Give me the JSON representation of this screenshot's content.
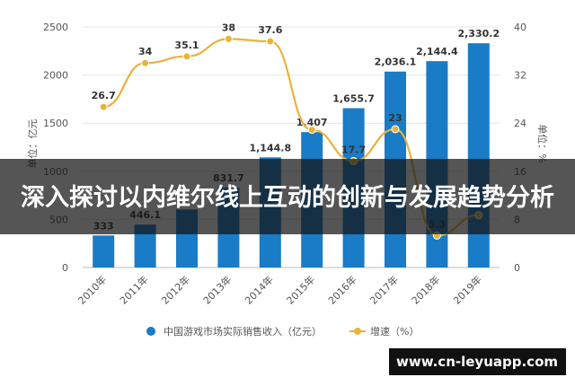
{
  "chart_data": {
    "type": "bar",
    "categories": [
      "2010年",
      "2011年",
      "2012年",
      "2013年",
      "2014年",
      "2015年",
      "2016年",
      "2017年",
      "2018年",
      "2019年"
    ],
    "series": [
      {
        "name": "中国游戏市场实际销售收入（亿元）",
        "type": "bar",
        "color": "#1a7bc6",
        "values": [
          333,
          446.1,
          602.8,
          831.7,
          1144.8,
          1407,
          1655.7,
          2036.1,
          2144.4,
          2330.2
        ],
        "value_labels": [
          "333",
          "446.1",
          null,
          "831.7",
          "1,144.8",
          "1,407",
          "1,655.7",
          "2,036.1",
          "2,144.4",
          "2,330.2"
        ]
      },
      {
        "name": "增速（%）",
        "type": "line",
        "axis": "y2",
        "color": "#e8b33c",
        "values": [
          26.7,
          34,
          35.1,
          38,
          37.6,
          22.9,
          17.7,
          23,
          5.3,
          8.7
        ],
        "value_labels": [
          "26.7",
          "34",
          "35.1",
          "38",
          "37.6",
          null,
          "17.7",
          "23",
          "5.3",
          null
        ]
      }
    ],
    "ylabel": "单位：亿元",
    "y2label": "单位：%",
    "ylim": [
      0,
      2500
    ],
    "yticks": [
      0,
      500,
      1000,
      1500,
      2000,
      2500
    ],
    "y2lim": [
      0,
      40
    ],
    "y2ticks": [
      0,
      8,
      16,
      24,
      32,
      40
    ]
  },
  "overlay": {
    "headline": "深入探讨以内维尔线上互动的创新与发展趋势分析",
    "site": "www.cn-leyuapp.com"
  }
}
